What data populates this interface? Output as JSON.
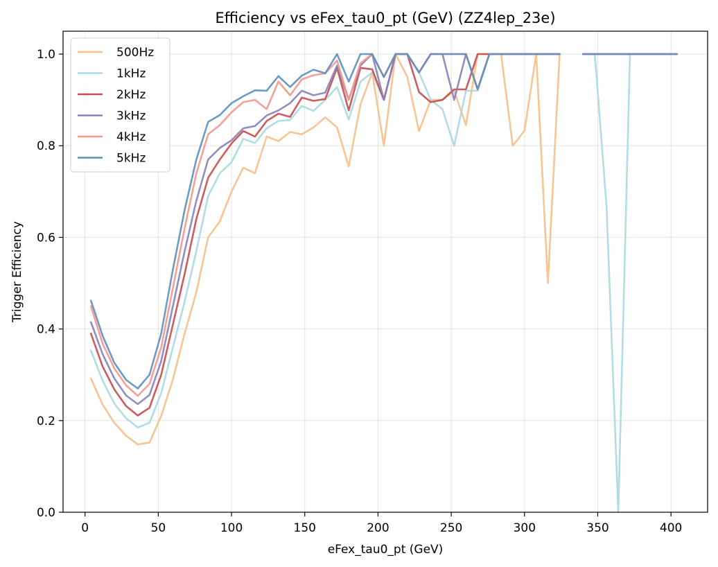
{
  "chart_data": {
    "type": "line",
    "title": "Efficiency vs eFex_tau0_pt (GeV) (ZZ4lep_23e)",
    "xlabel": "eFex_tau0_pt (GeV)",
    "ylabel": "Trigger Efficiency",
    "xlim": [
      -15,
      425
    ],
    "ylim": [
      0,
      1.05
    ],
    "xticks": [
      0,
      50,
      100,
      150,
      200,
      250,
      300,
      350,
      400
    ],
    "yticks": [
      0.0,
      0.2,
      0.4,
      0.6,
      0.8,
      1.0
    ],
    "xtick_labels": [
      "0",
      "50",
      "100",
      "150",
      "200",
      "250",
      "300",
      "350",
      "400"
    ],
    "ytick_labels": [
      "0.0",
      "0.2",
      "0.4",
      "0.6",
      "0.8",
      "1.0"
    ],
    "grid": true,
    "legend_position": "top-left",
    "x": [
      4,
      12,
      20,
      28,
      36,
      44,
      52,
      60,
      68,
      76,
      84,
      92,
      100,
      108,
      116,
      124,
      132,
      140,
      148,
      156,
      164,
      172,
      180,
      188,
      196,
      204,
      212,
      220,
      228,
      236,
      244,
      252,
      260,
      268,
      276,
      284,
      292,
      300,
      308,
      316,
      324,
      332,
      340,
      348,
      356,
      364,
      372,
      380,
      388,
      396,
      404
    ],
    "series": [
      {
        "name": "500Hz",
        "color": "#f5bf85",
        "values": [
          0.292,
          0.235,
          0.195,
          0.167,
          0.148,
          0.152,
          0.21,
          0.29,
          0.39,
          0.48,
          0.6,
          0.635,
          0.7,
          0.752,
          0.74,
          0.82,
          0.81,
          0.83,
          0.825,
          0.84,
          0.862,
          0.84,
          0.755,
          0.89,
          0.96,
          0.8,
          1.0,
          0.95,
          0.832,
          0.9,
          0.9,
          0.92,
          0.845,
          1.0,
          1.0,
          1.0,
          0.8,
          0.833,
          1.0,
          0.5,
          1.0,
          null,
          null,
          null,
          null,
          null,
          null,
          null,
          null,
          null,
          null
        ]
      },
      {
        "name": "1kHz",
        "color": "#a8d8e0",
        "values": [
          0.353,
          0.287,
          0.237,
          0.205,
          0.185,
          0.195,
          0.26,
          0.36,
          0.46,
          0.57,
          0.69,
          0.74,
          0.764,
          0.815,
          0.806,
          0.838,
          0.854,
          0.856,
          0.887,
          0.876,
          0.9,
          0.928,
          0.857,
          0.94,
          0.96,
          0.9,
          1.0,
          1.0,
          0.96,
          0.9,
          0.88,
          0.8,
          0.92,
          0.92,
          1.0,
          1.0,
          1.0,
          1.0,
          1.0,
          1.0,
          1.0,
          null,
          1.0,
          1.0,
          0.667,
          0.0,
          1.0,
          1.0,
          1.0,
          1.0,
          1.0
        ]
      },
      {
        "name": "2kHz",
        "color": "#c94a4a",
        "values": [
          0.39,
          0.318,
          0.268,
          0.232,
          0.211,
          0.228,
          0.3,
          0.41,
          0.52,
          0.64,
          0.73,
          0.77,
          0.805,
          0.832,
          0.82,
          0.854,
          0.87,
          0.863,
          0.905,
          0.898,
          0.902,
          0.97,
          0.877,
          0.97,
          0.967,
          0.9,
          1.0,
          1.0,
          0.917,
          0.895,
          0.9,
          0.923,
          0.923,
          1.0,
          1.0,
          1.0,
          1.0,
          1.0,
          1.0,
          1.0,
          1.0,
          null,
          1.0,
          1.0,
          1.0,
          1.0,
          1.0,
          1.0,
          1.0,
          1.0,
          1.0
        ]
      },
      {
        "name": "3kHz",
        "color": "#8681ba",
        "values": [
          0.415,
          0.345,
          0.292,
          0.255,
          0.236,
          0.256,
          0.33,
          0.45,
          0.57,
          0.68,
          0.77,
          0.795,
          0.812,
          0.838,
          0.843,
          0.866,
          0.877,
          0.893,
          0.92,
          0.91,
          0.916,
          0.975,
          0.9,
          0.975,
          1.0,
          0.9,
          1.0,
          1.0,
          0.96,
          1.0,
          1.0,
          0.9,
          1.0,
          0.923,
          1.0,
          1.0,
          1.0,
          1.0,
          1.0,
          1.0,
          1.0,
          null,
          1.0,
          1.0,
          1.0,
          1.0,
          1.0,
          1.0,
          1.0,
          1.0,
          1.0
        ]
      },
      {
        "name": "4kHz",
        "color": "#f4968a",
        "values": [
          0.45,
          0.368,
          0.314,
          0.277,
          0.254,
          0.28,
          0.36,
          0.49,
          0.62,
          0.74,
          0.825,
          0.845,
          0.873,
          0.895,
          0.9,
          0.88,
          0.94,
          0.91,
          0.945,
          0.954,
          0.958,
          0.986,
          0.9,
          0.98,
          1.0,
          0.95,
          1.0,
          1.0,
          0.96,
          1.0,
          1.0,
          1.0,
          1.0,
          0.923,
          1.0,
          1.0,
          1.0,
          1.0,
          1.0,
          1.0,
          1.0,
          null,
          1.0,
          1.0,
          1.0,
          1.0,
          1.0,
          1.0,
          1.0,
          1.0,
          1.0
        ]
      },
      {
        "name": "5kHz",
        "color": "#5b8fbe",
        "values": [
          0.462,
          0.385,
          0.326,
          0.289,
          0.27,
          0.3,
          0.39,
          0.53,
          0.66,
          0.77,
          0.852,
          0.867,
          0.893,
          0.908,
          0.921,
          0.92,
          0.952,
          0.928,
          0.953,
          0.966,
          0.958,
          1.0,
          0.94,
          1.0,
          1.0,
          0.95,
          1.0,
          1.0,
          0.96,
          1.0,
          1.0,
          1.0,
          1.0,
          0.923,
          1.0,
          1.0,
          1.0,
          1.0,
          1.0,
          1.0,
          1.0,
          null,
          1.0,
          1.0,
          1.0,
          1.0,
          1.0,
          1.0,
          1.0,
          1.0,
          1.0
        ]
      }
    ]
  }
}
